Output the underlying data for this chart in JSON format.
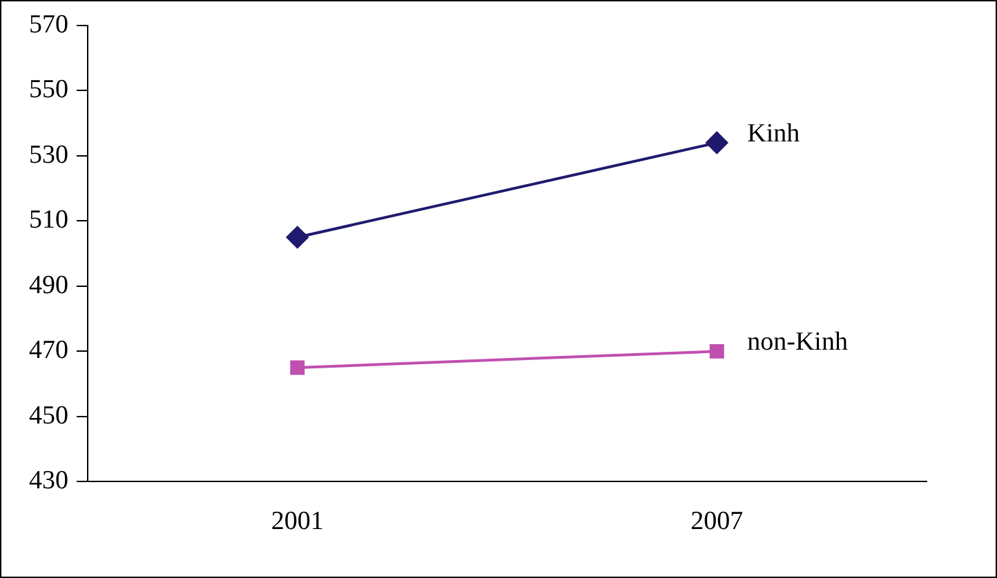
{
  "chart_data": {
    "type": "line",
    "categories": [
      "2001",
      "2007"
    ],
    "series": [
      {
        "name": "Kinh",
        "color": "#1f1a6e",
        "values": [
          505,
          534
        ],
        "marker": "diamond"
      },
      {
        "name": "non-Kinh",
        "color": "#c04fb0",
        "values": [
          465,
          470
        ],
        "marker": "square"
      }
    ],
    "ylim": [
      430,
      570
    ],
    "yticks": [
      430,
      450,
      470,
      490,
      510,
      530,
      550,
      570
    ],
    "grid": false,
    "legend": false,
    "line_style": "solid"
  }
}
